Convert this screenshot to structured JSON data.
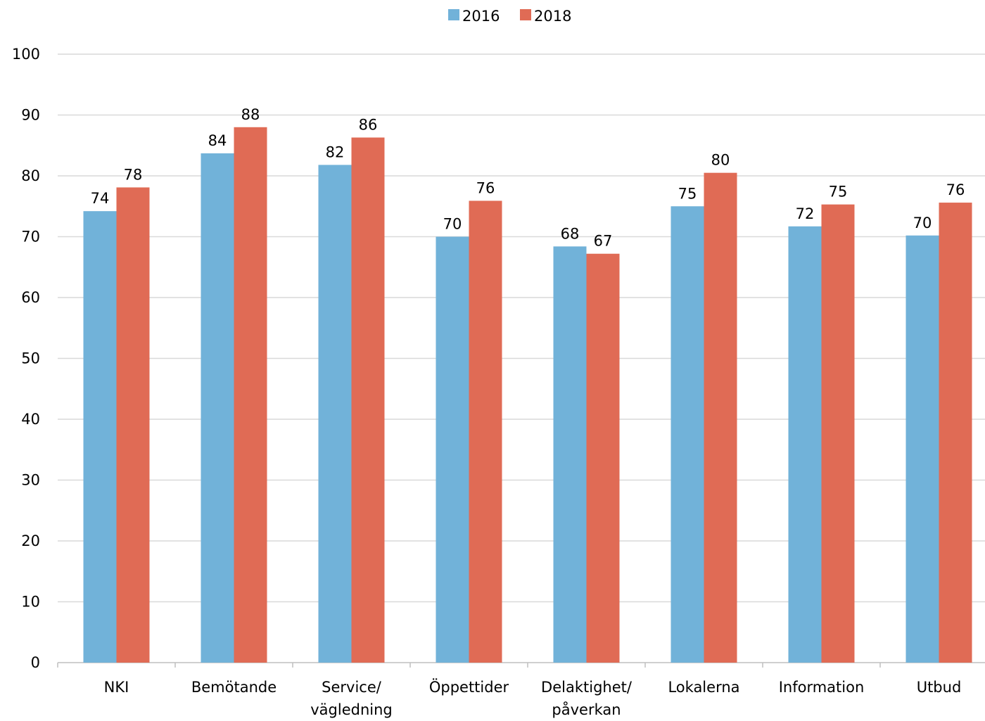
{
  "chart_data": {
    "type": "bar",
    "categories": [
      [
        "NKI"
      ],
      [
        "Bemötande"
      ],
      [
        "Service/",
        "vägledning"
      ],
      [
        "Öppettider"
      ],
      [
        "Delaktighet/",
        "påverkan"
      ],
      [
        "Lokalerna"
      ],
      [
        "Information"
      ],
      [
        "Utbud"
      ]
    ],
    "series": [
      {
        "name": "2016",
        "color": "#71b2d9",
        "values": [
          74.2,
          83.7,
          81.8,
          70.0,
          68.4,
          75.0,
          71.7,
          70.2
        ],
        "labels": [
          "74",
          "84",
          "82",
          "70",
          "68",
          "75",
          "72",
          "70"
        ]
      },
      {
        "name": "2018",
        "color": "#e06b55",
        "values": [
          78.1,
          88.0,
          86.3,
          75.9,
          67.2,
          80.5,
          75.3,
          75.6
        ],
        "labels": [
          "78",
          "88",
          "86",
          "76",
          "67",
          "80",
          "75",
          "76"
        ]
      }
    ],
    "ylim": [
      0,
      100
    ],
    "yticks": [
      "0",
      "10",
      "20",
      "30",
      "40",
      "50",
      "60",
      "70",
      "80",
      "90",
      "100"
    ],
    "grid": true,
    "legend_position": "top-center",
    "gridline_color": "#d9d9d9",
    "axis_color": "#bfbfbf"
  }
}
